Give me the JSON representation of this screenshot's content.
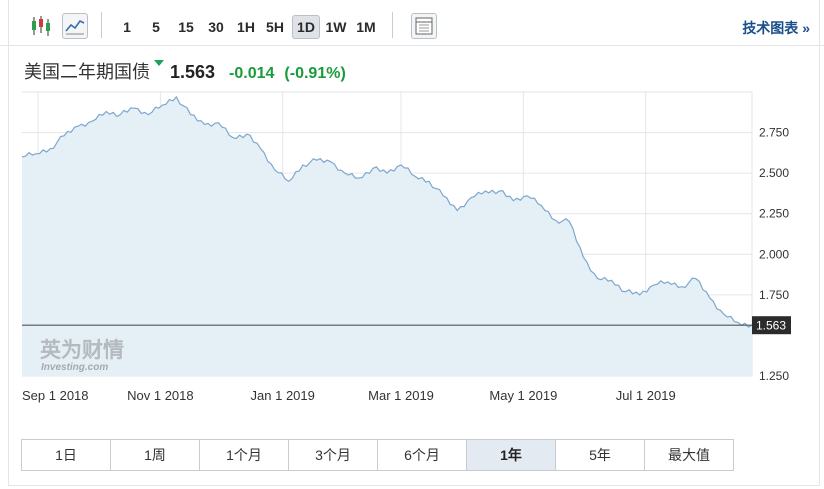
{
  "toolbar": {
    "intervals": [
      "1",
      "5",
      "15",
      "30",
      "1H",
      "5H",
      "1D",
      "1W",
      "1M"
    ],
    "active_interval": "1D",
    "tech_chart_label": "技术图表 »"
  },
  "header": {
    "name": "美国二年期国债",
    "price": "1.563",
    "change": "-0.014",
    "change_pct": "(-0.91%)",
    "change_color": "#1a9b3a"
  },
  "watermark": {
    "cn": "英为财情",
    "en": "Investing.com"
  },
  "ranges": [
    "1日",
    "1周",
    "1个月",
    "3个月",
    "6个月",
    "1年",
    "5年",
    "最大值"
  ],
  "active_range": "1年",
  "chart_data": {
    "type": "area",
    "xlabel": "",
    "ylabel": "",
    "x_ticks": [
      "Sep 1 2018",
      "Nov 1 2018",
      "Jan 1 2019",
      "Mar 1 2019",
      "May 1 2019",
      "Jul 1 2019"
    ],
    "y_ticks": [
      "2.750",
      "2.500",
      "2.250",
      "2.000",
      "1.750",
      "1.250"
    ],
    "ylim": [
      1.25,
      3.0
    ],
    "last_value": "1.563",
    "line_color": "#7da7cf",
    "fill_color": "#e5eff6",
    "series": [
      {
        "x": [
          "2018-08-24",
          "2018-08-31",
          "2018-09-07",
          "2018-09-14",
          "2018-09-21",
          "2018-09-28",
          "2018-10-05",
          "2018-10-12",
          "2018-10-19",
          "2018-10-26",
          "2018-11-02",
          "2018-11-09",
          "2018-11-16",
          "2018-11-23",
          "2018-11-30",
          "2018-12-07",
          "2018-12-14",
          "2018-12-21",
          "2018-12-28",
          "2019-01-04",
          "2019-01-11",
          "2019-01-18",
          "2019-01-25",
          "2019-02-01",
          "2019-02-08",
          "2019-02-15",
          "2019-02-22",
          "2019-03-01",
          "2019-03-08",
          "2019-03-15",
          "2019-03-22",
          "2019-03-29",
          "2019-04-05",
          "2019-04-12",
          "2019-04-19",
          "2019-04-26",
          "2019-05-03",
          "2019-05-10",
          "2019-05-17",
          "2019-05-24",
          "2019-05-31",
          "2019-06-07",
          "2019-06-14",
          "2019-06-21",
          "2019-06-28",
          "2019-07-05",
          "2019-07-12",
          "2019-07-19",
          "2019-07-26",
          "2019-08-02",
          "2019-08-09",
          "2019-08-16",
          "2019-08-23"
        ],
        "values": [
          2.6,
          2.62,
          2.65,
          2.73,
          2.79,
          2.82,
          2.88,
          2.86,
          2.9,
          2.86,
          2.92,
          2.97,
          2.86,
          2.8,
          2.81,
          2.72,
          2.74,
          2.65,
          2.52,
          2.45,
          2.55,
          2.58,
          2.57,
          2.5,
          2.47,
          2.53,
          2.5,
          2.55,
          2.48,
          2.45,
          2.36,
          2.27,
          2.35,
          2.39,
          2.39,
          2.33,
          2.36,
          2.3,
          2.21,
          2.2,
          1.98,
          1.85,
          1.84,
          1.77,
          1.75,
          1.81,
          1.83,
          1.8,
          1.85,
          1.73,
          1.63,
          1.58,
          1.563
        ]
      }
    ]
  }
}
